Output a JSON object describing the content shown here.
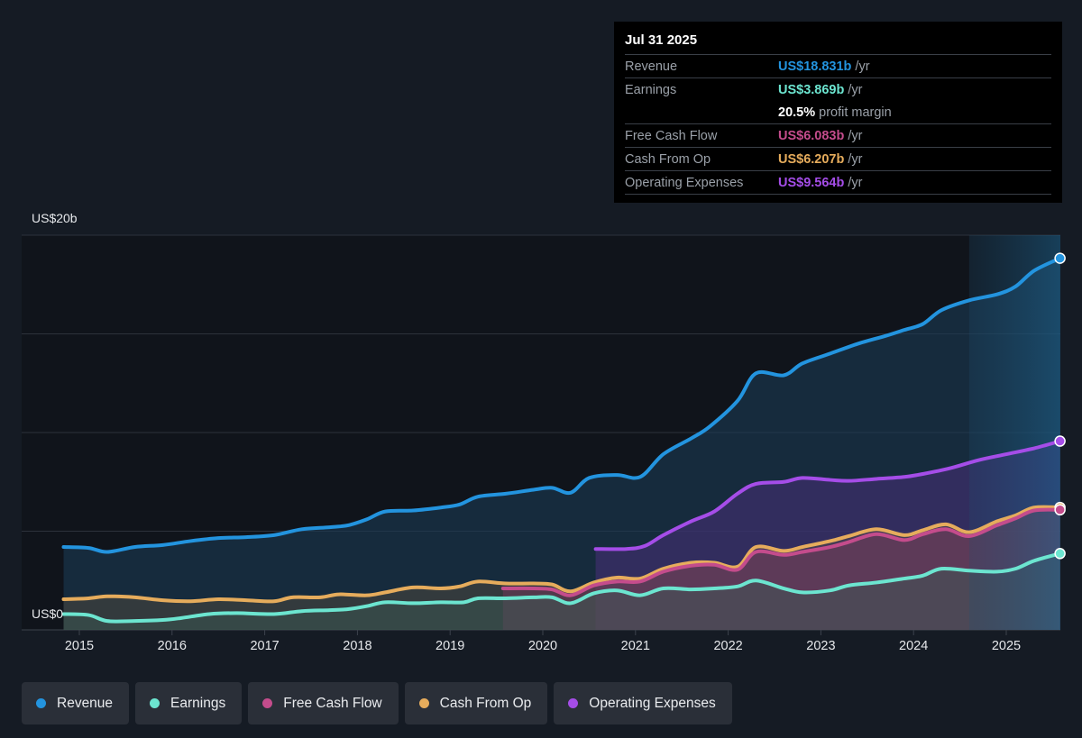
{
  "tooltip": {
    "date": "Jul 31 2025",
    "rows": [
      {
        "label": "Revenue",
        "value": "US$18.831b",
        "unit": "/yr",
        "color": "#2394df"
      },
      {
        "label": "Earnings",
        "value": "US$3.869b",
        "unit": "/yr",
        "color": "#6ce5d0"
      },
      {
        "label": "",
        "value": "20.5%",
        "unit": "profit margin",
        "color": "#ffffff"
      },
      {
        "label": "Free Cash Flow",
        "value": "US$6.083b",
        "unit": "/yr",
        "color": "#c44c8c"
      },
      {
        "label": "Cash From Op",
        "value": "US$6.207b",
        "unit": "/yr",
        "color": "#e6ac5c"
      },
      {
        "label": "Operating Expenses",
        "value": "US$9.564b",
        "unit": "/yr",
        "color": "#a54de8"
      }
    ]
  },
  "legend": [
    {
      "label": "Revenue",
      "color": "#2394df"
    },
    {
      "label": "Earnings",
      "color": "#6ce5d0"
    },
    {
      "label": "Free Cash Flow",
      "color": "#c44c8c"
    },
    {
      "label": "Cash From Op",
      "color": "#e6ac5c"
    },
    {
      "label": "Operating Expenses",
      "color": "#a54de8"
    }
  ],
  "chart_data": {
    "type": "area",
    "title": "",
    "xlabel": "",
    "ylabel": "",
    "y_top_label": "US$20b",
    "y_bottom_label": "US$0",
    "ylim": [
      0,
      20
    ],
    "xlim": [
      2014.4,
      2025.6
    ],
    "x_ticks": [
      "2015",
      "2016",
      "2017",
      "2018",
      "2019",
      "2020",
      "2021",
      "2022",
      "2023",
      "2024",
      "2025"
    ],
    "grid": true,
    "legend_position": "bottom",
    "highlight_start": 2024.6,
    "series": [
      {
        "name": "Revenue",
        "color": "#2394df",
        "x": [
          2014.83,
          2015.1,
          2015.3,
          2015.6,
          2015.9,
          2016.2,
          2016.5,
          2016.8,
          2017.1,
          2017.4,
          2017.7,
          2017.9,
          2018.1,
          2018.3,
          2018.6,
          2018.9,
          2019.1,
          2019.3,
          2019.6,
          2019.9,
          2020.1,
          2020.3,
          2020.5,
          2020.8,
          2021.05,
          2021.3,
          2021.6,
          2021.8,
          2022.1,
          2022.3,
          2022.6,
          2022.8,
          2023.1,
          2023.4,
          2023.7,
          2023.9,
          2024.1,
          2024.3,
          2024.6,
          2024.9,
          2025.1,
          2025.3,
          2025.58
        ],
        "values": [
          4.2,
          4.15,
          3.95,
          4.2,
          4.3,
          4.5,
          4.65,
          4.7,
          4.8,
          5.1,
          5.2,
          5.3,
          5.6,
          6.0,
          6.05,
          6.2,
          6.35,
          6.75,
          6.9,
          7.1,
          7.2,
          6.95,
          7.7,
          7.85,
          7.75,
          8.9,
          9.7,
          10.3,
          11.6,
          13.0,
          12.9,
          13.5,
          14.0,
          14.5,
          14.9,
          15.2,
          15.5,
          16.2,
          16.7,
          17.0,
          17.4,
          18.2,
          18.831
        ]
      },
      {
        "name": "Operating Expenses",
        "color": "#a54de8",
        "x": [
          2020.57,
          2020.9,
          2021.1,
          2021.3,
          2021.6,
          2021.85,
          2022.1,
          2022.3,
          2022.6,
          2022.8,
          2023.1,
          2023.3,
          2023.6,
          2023.9,
          2024.1,
          2024.4,
          2024.7,
          2025.0,
          2025.3,
          2025.58
        ],
        "values": [
          4.1,
          4.1,
          4.25,
          4.8,
          5.5,
          6.0,
          6.9,
          7.4,
          7.5,
          7.7,
          7.6,
          7.55,
          7.65,
          7.75,
          7.9,
          8.2,
          8.6,
          8.9,
          9.2,
          9.564
        ]
      },
      {
        "name": "Cash From Op",
        "color": "#e6ac5c",
        "x": [
          2014.83,
          2015.1,
          2015.3,
          2015.6,
          2015.9,
          2016.2,
          2016.5,
          2016.8,
          2017.1,
          2017.3,
          2017.6,
          2017.8,
          2018.1,
          2018.3,
          2018.6,
          2018.9,
          2019.1,
          2019.3,
          2019.6,
          2019.9,
          2020.1,
          2020.3,
          2020.55,
          2020.8,
          2021.05,
          2021.3,
          2021.6,
          2021.85,
          2022.1,
          2022.3,
          2022.6,
          2022.8,
          2023.1,
          2023.3,
          2023.6,
          2023.9,
          2024.1,
          2024.35,
          2024.6,
          2024.9,
          2025.1,
          2025.3,
          2025.58
        ],
        "values": [
          1.55,
          1.6,
          1.7,
          1.65,
          1.5,
          1.45,
          1.55,
          1.5,
          1.45,
          1.65,
          1.65,
          1.8,
          1.75,
          1.9,
          2.15,
          2.1,
          2.2,
          2.45,
          2.35,
          2.35,
          2.3,
          1.95,
          2.4,
          2.65,
          2.6,
          3.1,
          3.4,
          3.4,
          3.2,
          4.2,
          4.0,
          4.2,
          4.5,
          4.75,
          5.1,
          4.8,
          5.05,
          5.35,
          4.95,
          5.5,
          5.8,
          6.2,
          6.207
        ]
      },
      {
        "name": "Free Cash Flow",
        "color": "#c44c8c",
        "x": [
          2019.57,
          2019.9,
          2020.1,
          2020.3,
          2020.55,
          2020.8,
          2021.05,
          2021.3,
          2021.6,
          2021.85,
          2022.1,
          2022.3,
          2022.6,
          2022.8,
          2023.1,
          2023.3,
          2023.6,
          2023.9,
          2024.1,
          2024.35,
          2024.6,
          2024.9,
          2025.1,
          2025.3,
          2025.58
        ],
        "values": [
          2.1,
          2.1,
          2.05,
          1.75,
          2.25,
          2.45,
          2.45,
          2.95,
          3.25,
          3.3,
          3.05,
          3.95,
          3.8,
          3.95,
          4.2,
          4.45,
          4.85,
          4.55,
          4.85,
          5.1,
          4.75,
          5.3,
          5.65,
          6.05,
          6.083
        ]
      },
      {
        "name": "Earnings",
        "color": "#6ce5d0",
        "x": [
          2014.83,
          2015.1,
          2015.3,
          2015.6,
          2015.9,
          2016.1,
          2016.4,
          2016.7,
          2017.1,
          2017.4,
          2017.7,
          2017.9,
          2018.1,
          2018.3,
          2018.6,
          2018.9,
          2019.15,
          2019.3,
          2019.6,
          2019.9,
          2020.1,
          2020.3,
          2020.55,
          2020.8,
          2021.05,
          2021.3,
          2021.6,
          2021.85,
          2022.1,
          2022.3,
          2022.6,
          2022.8,
          2023.1,
          2023.3,
          2023.6,
          2023.9,
          2024.1,
          2024.3,
          2024.6,
          2024.9,
          2025.1,
          2025.3,
          2025.58
        ],
        "values": [
          0.8,
          0.75,
          0.45,
          0.45,
          0.5,
          0.6,
          0.8,
          0.85,
          0.8,
          0.95,
          1.0,
          1.05,
          1.2,
          1.4,
          1.35,
          1.4,
          1.4,
          1.6,
          1.6,
          1.65,
          1.65,
          1.35,
          1.85,
          2.0,
          1.75,
          2.1,
          2.05,
          2.1,
          2.2,
          2.5,
          2.1,
          1.9,
          2.0,
          2.25,
          2.4,
          2.6,
          2.75,
          3.1,
          3.0,
          2.95,
          3.1,
          3.5,
          3.869
        ]
      }
    ]
  }
}
